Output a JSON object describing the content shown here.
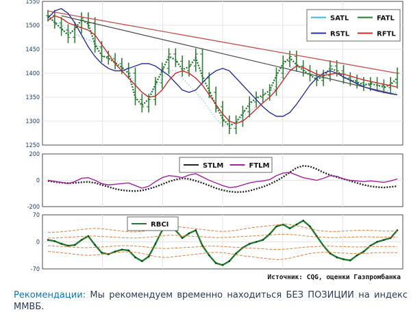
{
  "chart_data": [
    {
      "type": "line",
      "panel": "price",
      "ylim": [
        1250,
        1550
      ],
      "yticks": [
        "1550",
        "1500",
        "1450",
        "1400",
        "1350",
        "1300",
        "1250"
      ],
      "grid": true,
      "legend_position": "top-right",
      "x": [
        0,
        10,
        20,
        30,
        40,
        50,
        60,
        70,
        80,
        90,
        100,
        110,
        120,
        130,
        140,
        150,
        160,
        170,
        180,
        190,
        200,
        210,
        220,
        230,
        240,
        250,
        260,
        270,
        280,
        290,
        300,
        310,
        320,
        330,
        340,
        350,
        360,
        370,
        380,
        390,
        400,
        410,
        420,
        430,
        440,
        450,
        460,
        470,
        480,
        490,
        500,
        510,
        520
      ],
      "price_close": [
        1520,
        1505,
        1490,
        1475,
        1495,
        1515,
        1505,
        1455,
        1435,
        1430,
        1420,
        1410,
        1400,
        1345,
        1330,
        1345,
        1380,
        1410,
        1440,
        1425,
        1405,
        1415,
        1440,
        1390,
        1360,
        1330,
        1300,
        1285,
        1300,
        1320,
        1340,
        1350,
        1355,
        1365,
        1400,
        1425,
        1435,
        1415,
        1405,
        1395,
        1385,
        1395,
        1415,
        1405,
        1390,
        1385,
        1380,
        1375,
        1380,
        1375,
        1370,
        1380,
        1400
      ],
      "series": [
        {
          "name": "SATL",
          "color": "#3cb6e8",
          "values": [
            1515,
            1508,
            1500,
            1490,
            1482,
            1475,
            1470,
            1462,
            1450,
            1440,
            1430,
            1415,
            1400,
            1380,
            1360,
            1355,
            1370,
            1390,
            1405,
            1405,
            1390,
            1375,
            1360,
            1345,
            1325,
            1305,
            1292,
            1290,
            1298,
            1310,
            1320,
            1330,
            1340,
            1355,
            1375,
            1395,
            1410,
            1418,
            1412,
            1402,
            1392,
            1388,
            1395,
            1402,
            1400,
            1392,
            1384,
            1378,
            1373,
            1370,
            1366,
            1362,
            1358
          ]
        },
        {
          "name": "FATL",
          "color": "#1f7a2a",
          "values": [
            1520,
            1506,
            1493,
            1480,
            1492,
            1512,
            1503,
            1460,
            1437,
            1431,
            1422,
            1412,
            1400,
            1350,
            1333,
            1346,
            1377,
            1405,
            1435,
            1428,
            1408,
            1413,
            1432,
            1393,
            1363,
            1333,
            1305,
            1290,
            1298,
            1316,
            1336,
            1348,
            1354,
            1364,
            1395,
            1420,
            1432,
            1418,
            1406,
            1396,
            1387,
            1393,
            1410,
            1405,
            1392,
            1386,
            1381,
            1376,
            1378,
            1375,
            1371,
            1376,
            1390
          ]
        },
        {
          "name": "RSTL",
          "color": "#2a2fa0",
          "values": [
            1515,
            1530,
            1535,
            1525,
            1505,
            1480,
            1455,
            1435,
            1420,
            1410,
            1405,
            1405,
            1410,
            1415,
            1420,
            1420,
            1415,
            1405,
            1395,
            1380,
            1365,
            1360,
            1365,
            1380,
            1395,
            1405,
            1410,
            1405,
            1390,
            1375,
            1360,
            1345,
            1330,
            1318,
            1310,
            1310,
            1318,
            1335,
            1355,
            1375,
            1390,
            1400,
            1405,
            1400,
            1392,
            1385,
            1378,
            1372,
            1367,
            1363,
            1360,
            1357,
            1355
          ]
        },
        {
          "name": "RFTL",
          "color": "#cc2a2a",
          "values": [
            1510,
            1520,
            1515,
            1505,
            1500,
            1495,
            1490,
            1480,
            1460,
            1440,
            1420,
            1405,
            1390,
            1375,
            1360,
            1350,
            1352,
            1365,
            1385,
            1400,
            1405,
            1400,
            1390,
            1375,
            1355,
            1335,
            1315,
            1300,
            1295,
            1300,
            1312,
            1325,
            1338,
            1350,
            1365,
            1385,
            1405,
            1415,
            1412,
            1405,
            1398,
            1395,
            1398,
            1400,
            1398,
            1394,
            1390,
            1386,
            1383,
            1380,
            1377,
            1374,
            1371
          ]
        }
      ],
      "trendlines": [
        {
          "color": "#c0504d",
          "from": [
            0,
            1530
          ],
          "to": [
            520,
            1400
          ]
        },
        {
          "color": "#555555",
          "from": [
            20,
            1520
          ],
          "to": [
            520,
            1355
          ]
        }
      ]
    },
    {
      "type": "line",
      "panel": "oscillator",
      "ylim": [
        -200,
        200
      ],
      "yticks": [
        "200",
        "0",
        "-200"
      ],
      "legend_position": "top-center",
      "x": [
        0,
        10,
        20,
        30,
        40,
        50,
        60,
        70,
        80,
        90,
        100,
        110,
        120,
        130,
        140,
        150,
        160,
        170,
        180,
        190,
        200,
        210,
        220,
        230,
        240,
        250,
        260,
        270,
        280,
        290,
        300,
        310,
        320,
        330,
        340,
        350,
        360,
        370,
        380,
        390,
        400,
        410,
        420,
        430,
        440,
        450,
        460,
        470,
        480,
        490,
        500,
        510,
        520
      ],
      "series": [
        {
          "name": "STLM",
          "color": "#222222",
          "values": [
            -5,
            -12,
            -18,
            -22,
            -20,
            -15,
            -12,
            -20,
            -35,
            -50,
            -65,
            -75,
            -80,
            -82,
            -78,
            -65,
            -50,
            -30,
            -10,
            5,
            15,
            10,
            -5,
            -20,
            -40,
            -60,
            -75,
            -85,
            -90,
            -88,
            -80,
            -65,
            -50,
            -30,
            -5,
            25,
            60,
            95,
            110,
            105,
            85,
            60,
            40,
            25,
            10,
            -5,
            -20,
            -35,
            -45,
            -52,
            -55,
            -50,
            -45
          ]
        },
        {
          "name": "FTLM",
          "color": "#a020a0",
          "values": [
            0,
            -8,
            -15,
            -25,
            -10,
            15,
            20,
            0,
            -25,
            -35,
            -30,
            -25,
            -20,
            -40,
            -60,
            -45,
            -10,
            20,
            35,
            30,
            20,
            40,
            50,
            25,
            0,
            -20,
            -40,
            -55,
            -50,
            -35,
            -20,
            -10,
            -5,
            5,
            35,
            55,
            60,
            40,
            20,
            10,
            0,
            15,
            35,
            30,
            10,
            0,
            -5,
            -10,
            -5,
            -10,
            -15,
            -5,
            10
          ]
        }
      ]
    },
    {
      "type": "line",
      "panel": "rbci",
      "ylim": [
        -70,
        70
      ],
      "yticks": [
        "70",
        "0",
        "-70"
      ],
      "legend_position": "top-left",
      "x": [
        0,
        10,
        20,
        30,
        40,
        50,
        60,
        70,
        80,
        90,
        100,
        110,
        120,
        130,
        140,
        150,
        160,
        170,
        180,
        190,
        200,
        210,
        220,
        230,
        240,
        250,
        260,
        270,
        280,
        290,
        300,
        310,
        320,
        330,
        340,
        350,
        360,
        370,
        380,
        390,
        400,
        410,
        420,
        430,
        440,
        450,
        460,
        470,
        480,
        490,
        500,
        510,
        520
      ],
      "series": [
        {
          "name": "RBCI",
          "color": "#1f7a2a",
          "values": [
            5,
            2,
            -5,
            -10,
            -8,
            5,
            15,
            -8,
            -28,
            -32,
            -25,
            -20,
            -22,
            -40,
            -50,
            -38,
            -5,
            30,
            45,
            30,
            10,
            22,
            30,
            -10,
            -35,
            -55,
            -60,
            -50,
            -30,
            -15,
            -5,
            0,
            5,
            20,
            40,
            45,
            35,
            45,
            55,
            40,
            15,
            -10,
            -30,
            -40,
            -45,
            -48,
            -35,
            -25,
            -10,
            0,
            5,
            10,
            30
          ]
        },
        {
          "name": "",
          "color": "#e07b39",
          "values": [
            25,
            25,
            26,
            28,
            30,
            32,
            34,
            35,
            34,
            32,
            30,
            28,
            26,
            26,
            27,
            30,
            34,
            38,
            40,
            40,
            38,
            36,
            34,
            32,
            30,
            28,
            27,
            28,
            30,
            33,
            36,
            38,
            40,
            42,
            44,
            46,
            45,
            42,
            38,
            34,
            30,
            28,
            27,
            27,
            28,
            29,
            30,
            30,
            30,
            29,
            28,
            28,
            28
          ]
        },
        {
          "name": "",
          "color": "#e07b39",
          "values": [
            10,
            10,
            11,
            12,
            13,
            14,
            15,
            15,
            14,
            13,
            12,
            11,
            10,
            10,
            11,
            12,
            14,
            16,
            17,
            17,
            16,
            15,
            14,
            13,
            12,
            11,
            11,
            12,
            13,
            14,
            15,
            16,
            17,
            18,
            19,
            20,
            19,
            18,
            16,
            14,
            13,
            12,
            11,
            11,
            12,
            12,
            13,
            13,
            13,
            12,
            12,
            12,
            12
          ]
        },
        {
          "name": "",
          "color": "#e07b39",
          "values": [
            -10,
            -11,
            -12,
            -13,
            -14,
            -15,
            -15,
            -14,
            -13,
            -12,
            -11,
            -10,
            -10,
            -11,
            -12,
            -14,
            -16,
            -17,
            -17,
            -16,
            -15,
            -14,
            -13,
            -12,
            -11,
            -11,
            -12,
            -13,
            -14,
            -15,
            -16,
            -17,
            -18,
            -19,
            -20,
            -19,
            -18,
            -16,
            -14,
            -13,
            -12,
            -11,
            -11,
            -12,
            -12,
            -13,
            -13,
            -13,
            -12,
            -12,
            -12,
            -12,
            -12
          ]
        },
        {
          "name": "",
          "color": "#e07b39",
          "values": [
            -25,
            -26,
            -28,
            -30,
            -32,
            -34,
            -35,
            -34,
            -32,
            -30,
            -28,
            -26,
            -26,
            -27,
            -30,
            -34,
            -38,
            -40,
            -40,
            -38,
            -36,
            -34,
            -32,
            -30,
            -28,
            -27,
            -28,
            -30,
            -33,
            -36,
            -38,
            -40,
            -42,
            -44,
            -46,
            -45,
            -42,
            -38,
            -34,
            -30,
            -28,
            -27,
            -27,
            -28,
            -29,
            -30,
            -30,
            -30,
            -29,
            -28,
            -28,
            -28,
            -28
          ]
        }
      ]
    }
  ],
  "source": "Источник: CQG, оценки Газпромбанка",
  "recommendation": {
    "label": "Рекомендации:",
    "text": " Мы рекомендуем временно находиться БЕЗ ПОЗИЦИИ на индекс ММВБ."
  },
  "colors": {
    "tick_text": "#1a3a6b",
    "bar": "#2e7d32",
    "grid": "#e4e4e4",
    "rec_label": "#0e74b8"
  }
}
